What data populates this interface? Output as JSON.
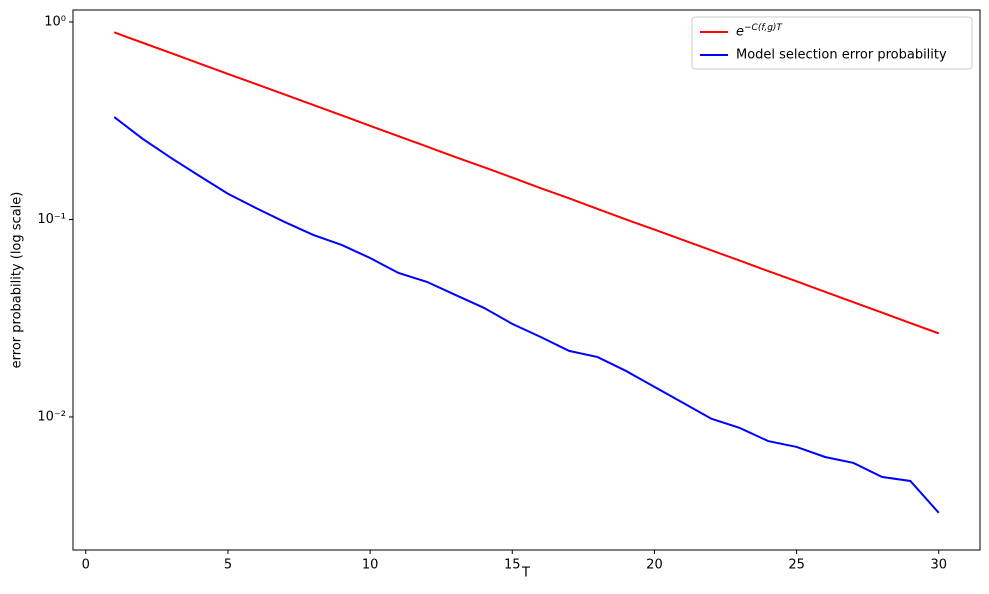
{
  "chart_data": {
    "type": "line",
    "xlabel": "T",
    "ylabel": "error probability (log scale)",
    "x": [
      1,
      2,
      3,
      4,
      5,
      6,
      7,
      8,
      9,
      10,
      11,
      12,
      13,
      14,
      15,
      16,
      17,
      18,
      19,
      20,
      21,
      22,
      23,
      24,
      25,
      26,
      27,
      28,
      29,
      30
    ],
    "series": [
      {
        "name": "e−C(f,g)T",
        "color": "#ff0000",
        "values": [
          0.886,
          0.785,
          0.696,
          0.616,
          0.546,
          0.484,
          0.429,
          0.38,
          0.337,
          0.298,
          0.264,
          0.234,
          0.207,
          0.184,
          0.163,
          0.144,
          0.128,
          0.113,
          0.1,
          0.0889,
          0.0788,
          0.0698,
          0.0619,
          0.0548,
          0.0486,
          0.043,
          0.0381,
          0.0338,
          0.0299,
          0.0265
        ]
      },
      {
        "name": "Model selection error probability",
        "color": "#0000ff",
        "values": [
          0.33,
          0.256,
          0.205,
          0.166,
          0.135,
          0.114,
          0.097,
          0.0835,
          0.0743,
          0.0638,
          0.0536,
          0.0483,
          0.0415,
          0.0357,
          0.0296,
          0.0254,
          0.0216,
          0.0201,
          0.0171,
          0.0142,
          0.0118,
          0.0098,
          0.0088,
          0.00755,
          0.00705,
          0.00627,
          0.00585,
          0.00497,
          0.00474,
          0.00327
        ]
      }
    ],
    "xlim": [
      -0.45,
      31.45
    ],
    "xticks": [
      0,
      5,
      10,
      15,
      20,
      25,
      30
    ],
    "ylim": [
      0.00212,
      1.15
    ],
    "ylog": true,
    "yticks": [
      {
        "value": 1,
        "label": "10⁰"
      },
      {
        "value": 0.1,
        "label": "10⁻¹"
      },
      {
        "value": 0.01,
        "label": "10⁻²"
      }
    ],
    "legend": "upper right"
  }
}
